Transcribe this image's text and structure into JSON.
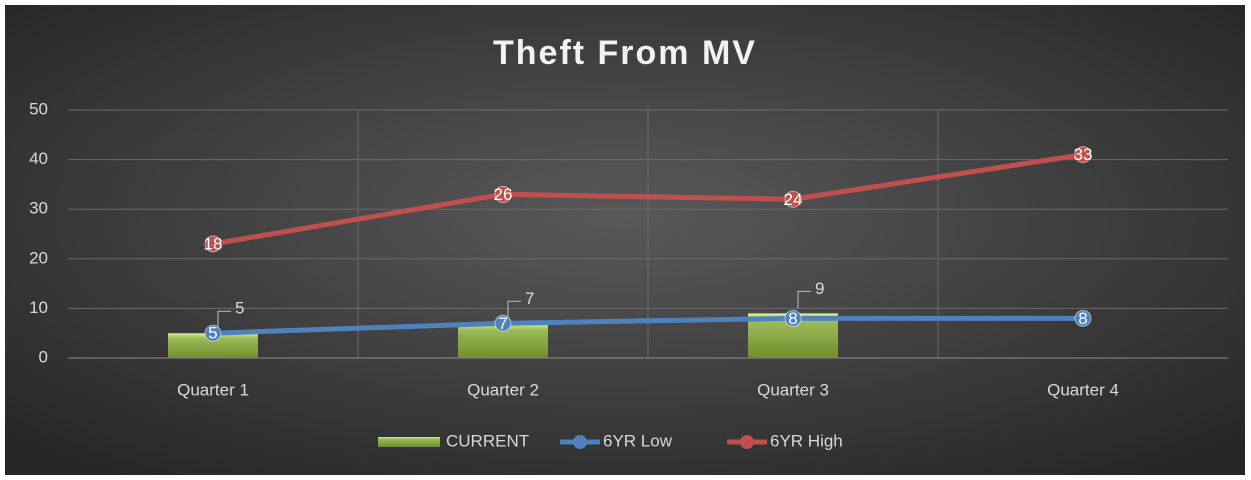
{
  "chart_data": {
    "type": "combo",
    "title": "Theft From MV",
    "categories": [
      "Quarter 1",
      "Quarter 2",
      "Quarter 3",
      "Quarter 4"
    ],
    "series": [
      {
        "name": "CURRENT",
        "type": "bar",
        "color": "#9bbb59",
        "values": [
          5,
          7,
          9,
          null
        ]
      },
      {
        "name": "6YR Low",
        "type": "line",
        "color": "#4f81bd",
        "values": [
          5,
          7,
          8,
          8
        ]
      },
      {
        "name": "6YR High",
        "type": "line",
        "color": "#c0504d",
        "stacked": true,
        "values": [
          18,
          26,
          24,
          33
        ]
      }
    ],
    "ylim": [
      0,
      50
    ],
    "yticks": [
      0,
      10,
      20,
      30,
      40,
      50
    ],
    "grid": true,
    "legend": "bottom"
  }
}
